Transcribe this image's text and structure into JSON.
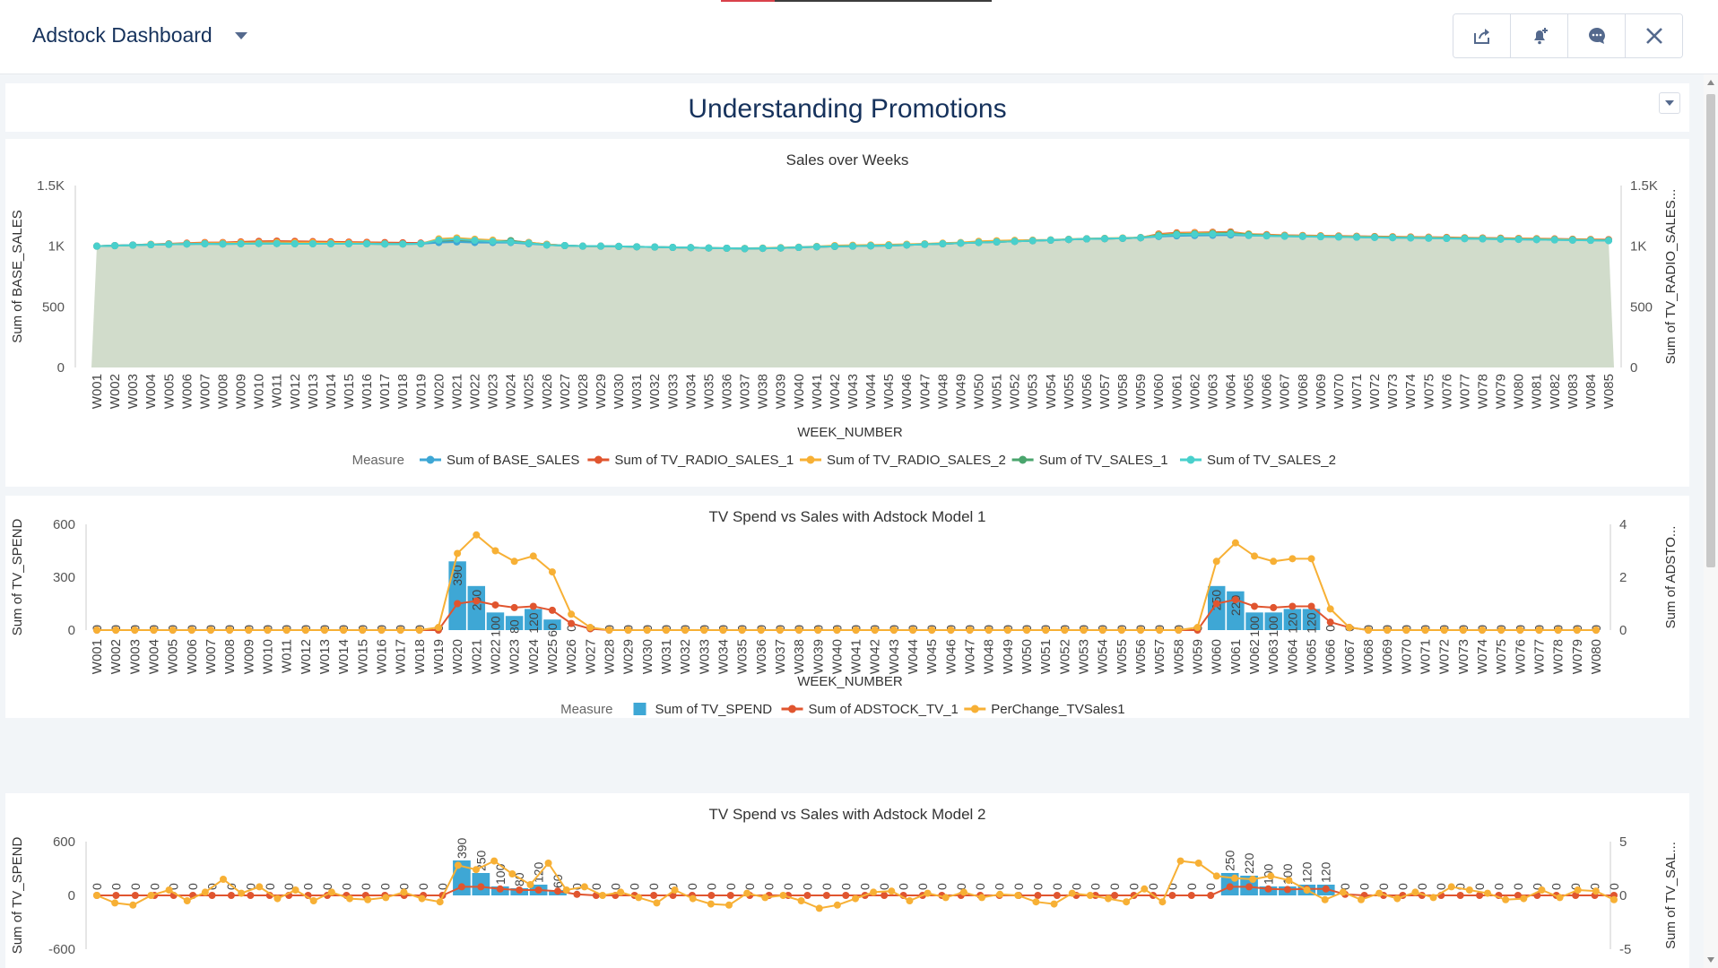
{
  "header": {
    "title": "Adstock Dashboard",
    "toolbar": [
      "share-icon",
      "subscribe-bell-icon",
      "chat-icon",
      "close-icon"
    ]
  },
  "page": {
    "title": "Understanding Promotions"
  },
  "chart1": {
    "title": "Sales over Weeks",
    "xlabel": "WEEK_NUMBER",
    "ylabel_left": "Sum of BASE_SALES",
    "ylabel_right": "Sum of TV_RADIO_SALES...",
    "yticks_left": [
      "0",
      "500",
      "1K",
      "1.5K"
    ],
    "yticks_right": [
      "0",
      "500",
      "1K",
      "1.5K"
    ],
    "legend_title": "Measure",
    "legend": [
      "Sum of BASE_SALES",
      "Sum of TV_RADIO_SALES_1",
      "Sum of TV_RADIO_SALES_2",
      "Sum of TV_SALES_1",
      "Sum of TV_SALES_2"
    ]
  },
  "chart2": {
    "title": "TV Spend vs Sales with Adstock Model 1",
    "xlabel": "WEEK_NUMBER",
    "ylabel_left": "Sum of TV_SPEND",
    "ylabel_right": "Sum of ADSTO...",
    "yticks_left": [
      "0",
      "300",
      "600"
    ],
    "yticks_right": [
      "0",
      "2",
      "4"
    ],
    "legend_title": "Measure",
    "legend": [
      "Sum of TV_SPEND",
      "Sum of ADSTOCK_TV_1",
      "PerChange_TVSales1"
    ]
  },
  "chart3": {
    "title": "TV Spend vs Sales with Adstock Model 2",
    "ylabel_left": "Sum of TV_SPEND",
    "ylabel_right": "Sum of TV_SAL...",
    "yticks_left": [
      "-600",
      "0",
      "600"
    ],
    "yticks_right": [
      "-5",
      "0",
      "5"
    ]
  },
  "colors": {
    "blue": "#3ea7d5",
    "red": "#e0552f",
    "orange": "#f7b035",
    "green": "#4aa56d",
    "teal": "#49d0cc",
    "area": "#d1dccb",
    "navy": "#16325c"
  },
  "chart_data": [
    {
      "type": "line",
      "title": "Sales over Weeks",
      "xlabel": "WEEK_NUMBER",
      "ylabel": "Sum of BASE_SALES",
      "ylim": [
        0,
        1500
      ],
      "weeks": 85,
      "series": [
        {
          "name": "Sum of BASE_SALES",
          "values": [
            1000,
            1005,
            1010,
            1012,
            1015,
            1018,
            1020,
            1018,
            1020,
            1022,
            1022,
            1020,
            1020,
            1020,
            1020,
            1020,
            1018,
            1018,
            1020,
            1030,
            1035,
            1030,
            1030,
            1030,
            1020,
            1010,
            1005,
            1000,
            1000,
            998,
            995,
            993,
            990,
            988,
            985,
            983,
            980,
            982,
            985,
            990,
            995,
            998,
            1000,
            1003,
            1005,
            1010,
            1015,
            1020,
            1025,
            1030,
            1035,
            1040,
            1045,
            1050,
            1055,
            1060,
            1062,
            1065,
            1070,
            1080,
            1085,
            1088,
            1090,
            1092,
            1088,
            1085,
            1082,
            1080,
            1078,
            1076,
            1074,
            1072,
            1070,
            1068,
            1066,
            1064,
            1062,
            1060,
            1058,
            1056,
            1054,
            1052,
            1050,
            1048,
            1046
          ]
        },
        {
          "name": "Sum of TV_RADIO_SALES_1",
          "values": [
            1000,
            1005,
            1010,
            1015,
            1020,
            1025,
            1030,
            1030,
            1035,
            1040,
            1042,
            1040,
            1038,
            1036,
            1034,
            1032,
            1030,
            1028,
            1026,
            1040,
            1050,
            1045,
            1042,
            1045,
            1030,
            1015,
            1005,
            1000,
            1000,
            998,
            995,
            993,
            990,
            988,
            985,
            983,
            980,
            982,
            985,
            990,
            995,
            998,
            1000,
            1003,
            1005,
            1010,
            1015,
            1020,
            1025,
            1030,
            1035,
            1040,
            1045,
            1050,
            1055,
            1060,
            1062,
            1065,
            1070,
            1100,
            1110,
            1112,
            1115,
            1118,
            1100,
            1095,
            1090,
            1088,
            1086,
            1084,
            1082,
            1080,
            1078,
            1076,
            1074,
            1072,
            1070,
            1068,
            1066,
            1064,
            1062,
            1060,
            1058,
            1056,
            1054
          ]
        },
        {
          "name": "Sum of TV_RADIO_SALES_2",
          "values": [
            1000,
            1005,
            1010,
            1015,
            1018,
            1022,
            1025,
            1025,
            1028,
            1030,
            1032,
            1030,
            1030,
            1028,
            1026,
            1024,
            1022,
            1020,
            1020,
            1060,
            1068,
            1058,
            1050,
            1040,
            1030,
            1015,
            1005,
            1000,
            1000,
            998,
            995,
            993,
            990,
            988,
            985,
            983,
            982,
            985,
            988,
            992,
            998,
            1005,
            1008,
            1010,
            1012,
            1016,
            1020,
            1025,
            1030,
            1040,
            1045,
            1048,
            1050,
            1052,
            1058,
            1062,
            1065,
            1068,
            1072,
            1095,
            1105,
            1108,
            1110,
            1112,
            1100,
            1092,
            1088,
            1086,
            1084,
            1082,
            1080,
            1078,
            1076,
            1074,
            1072,
            1070,
            1068,
            1066,
            1064,
            1062,
            1060,
            1058,
            1056,
            1054,
            1050
          ]
        },
        {
          "name": "Sum of TV_SALES_1",
          "values": [
            1000,
            1004,
            1008,
            1012,
            1015,
            1018,
            1020,
            1018,
            1020,
            1022,
            1022,
            1020,
            1020,
            1020,
            1020,
            1020,
            1018,
            1018,
            1020,
            1035,
            1040,
            1035,
            1035,
            1045,
            1025,
            1010,
            1005,
            1000,
            1000,
            998,
            995,
            993,
            990,
            988,
            985,
            983,
            980,
            982,
            985,
            990,
            995,
            998,
            1000,
            1003,
            1005,
            1010,
            1015,
            1020,
            1025,
            1030,
            1035,
            1040,
            1045,
            1050,
            1055,
            1060,
            1062,
            1065,
            1070,
            1090,
            1100,
            1102,
            1105,
            1108,
            1095,
            1088,
            1084,
            1082,
            1080,
            1078,
            1076,
            1074,
            1072,
            1070,
            1068,
            1066,
            1064,
            1062,
            1060,
            1058,
            1056,
            1054,
            1052,
            1050,
            1048
          ]
        },
        {
          "name": "Sum of TV_SALES_2",
          "values": [
            1000,
            1004,
            1008,
            1012,
            1015,
            1018,
            1020,
            1018,
            1020,
            1022,
            1022,
            1020,
            1020,
            1020,
            1020,
            1020,
            1018,
            1018,
            1020,
            1050,
            1058,
            1048,
            1040,
            1035,
            1025,
            1010,
            1005,
            1000,
            1000,
            998,
            995,
            993,
            990,
            988,
            985,
            983,
            980,
            982,
            985,
            990,
            995,
            998,
            1000,
            1003,
            1005,
            1010,
            1015,
            1020,
            1025,
            1030,
            1035,
            1040,
            1045,
            1050,
            1055,
            1060,
            1062,
            1065,
            1070,
            1085,
            1095,
            1098,
            1100,
            1102,
            1090,
            1085,
            1082,
            1080,
            1078,
            1076,
            1074,
            1072,
            1070,
            1068,
            1066,
            1064,
            1062,
            1060,
            1058,
            1056,
            1054,
            1052,
            1050,
            1048,
            1046
          ]
        }
      ]
    },
    {
      "type": "bar+line",
      "title": "TV Spend vs Sales with Adstock Model 1",
      "xlabel": "WEEK_NUMBER",
      "ylabel": "Sum of TV_SPEND",
      "ylim": [
        0,
        600
      ],
      "y2lim": [
        0,
        4
      ],
      "weeks": 80,
      "bars": {
        "name": "Sum of TV_SPEND",
        "values": {
          "20": 390,
          "21": 250,
          "22": 100,
          "23": 80,
          "24": 120,
          "25": 60,
          "60": 250,
          "61": 220,
          "62": 100,
          "63": 100,
          "64": 120,
          "65": 120
        }
      },
      "bar_labels": {
        "20": "390",
        "21": "250",
        "22": "100",
        "23": "80",
        "24": "120",
        "25": "60",
        "60": "250",
        "61": "220",
        "62": "100",
        "63": "100",
        "64": "120",
        "65": "120"
      },
      "series": [
        {
          "name": "Sum of ADSTOCK_TV_1",
          "values": {
            "20": 1.0,
            "21": 1.1,
            "22": 0.95,
            "23": 0.85,
            "24": 0.9,
            "25": 0.75,
            "26": 0.25,
            "27": 0.05,
            "60": 1.0,
            "61": 1.15,
            "62": 0.9,
            "63": 0.85,
            "64": 0.9,
            "65": 0.9,
            "66": 0.3,
            "67": 0.1
          }
        },
        {
          "name": "PerChange_TVSales1",
          "values": {
            "19": 0.1,
            "20": 2.9,
            "21": 3.6,
            "22": 3.0,
            "23": 2.6,
            "24": 2.8,
            "25": 2.2,
            "26": 0.6,
            "27": 0.1,
            "59": 0.1,
            "60": 2.6,
            "61": 3.3,
            "62": 2.8,
            "63": 2.6,
            "64": 2.7,
            "65": 2.7,
            "66": 0.8,
            "67": 0.1
          }
        }
      ]
    },
    {
      "type": "bar+line",
      "title": "TV Spend vs Sales with Adstock Model 2",
      "ylabel": "Sum of TV_SPEND",
      "ylim": [
        -600,
        600
      ],
      "y2lim": [
        -5,
        5
      ],
      "weeks": 80,
      "bars": {
        "name": "Sum of TV_SPEND",
        "values": {
          "20": 390,
          "21": 250,
          "22": 100,
          "23": 80,
          "24": 120,
          "25": 60,
          "60": 250,
          "61": 220,
          "62": 100,
          "63": 100,
          "64": 120,
          "65": 120
        }
      },
      "bar_labels": {
        "20": "390",
        "21": "250",
        "22": "100",
        "23": "80",
        "24": "120",
        "25": "60",
        "60": "250",
        "61": "220",
        "62": "100",
        "63": "100",
        "64": "120",
        "65": "120"
      },
      "series": [
        {
          "name": "Sum of ADSTOCK_TV_1",
          "values": {
            "20": 0.8,
            "21": 0.8,
            "22": 0.6,
            "23": 0.5,
            "24": 0.5,
            "25": 0.4,
            "26": 0.1,
            "60": 0.8,
            "61": 0.8,
            "62": 0.6,
            "63": 0.55,
            "64": 0.6,
            "65": 0.6,
            "66": 0.1
          }
        },
        {
          "name": "PerChange_TVSales1",
          "values": [
            0,
            -0.7,
            -0.9,
            0,
            0.5,
            -0.5,
            0.3,
            1.5,
            0.2,
            0.8,
            -0.3,
            0.5,
            -0.5,
            0.3,
            -0.3,
            -0.4,
            -0.2,
            0.3,
            -0.3,
            -0.6,
            2.8,
            2.4,
            3.2,
            2.0,
            1.0,
            3.0,
            0.5,
            0.8,
            0,
            0.3,
            -0.2,
            -0.7,
            0.5,
            -0.3,
            -0.8,
            -0.9,
            0.2,
            -0.2,
            0,
            -0.5,
            -1.2,
            -0.9,
            -0.3,
            0.3,
            0.4,
            -0.5,
            0.2,
            -0.2,
            0.3,
            -0.2,
            0.1,
            0,
            -0.6,
            -0.8,
            0.2,
            0,
            -0.3,
            -0.6,
            0.6,
            -0.6,
            3.2,
            3.0,
            1.8,
            1.6,
            1.5,
            1.8,
            1.4,
            0.5,
            -0.4,
            0.3,
            -0.4,
            0.2,
            -0.3,
            0.3,
            -0.2,
            0.8,
            0.5,
            0.2,
            -0.4,
            -0.3,
            0.5,
            -0.2,
            0.5,
            0.4,
            -0.4
          ]
        }
      ]
    }
  ]
}
